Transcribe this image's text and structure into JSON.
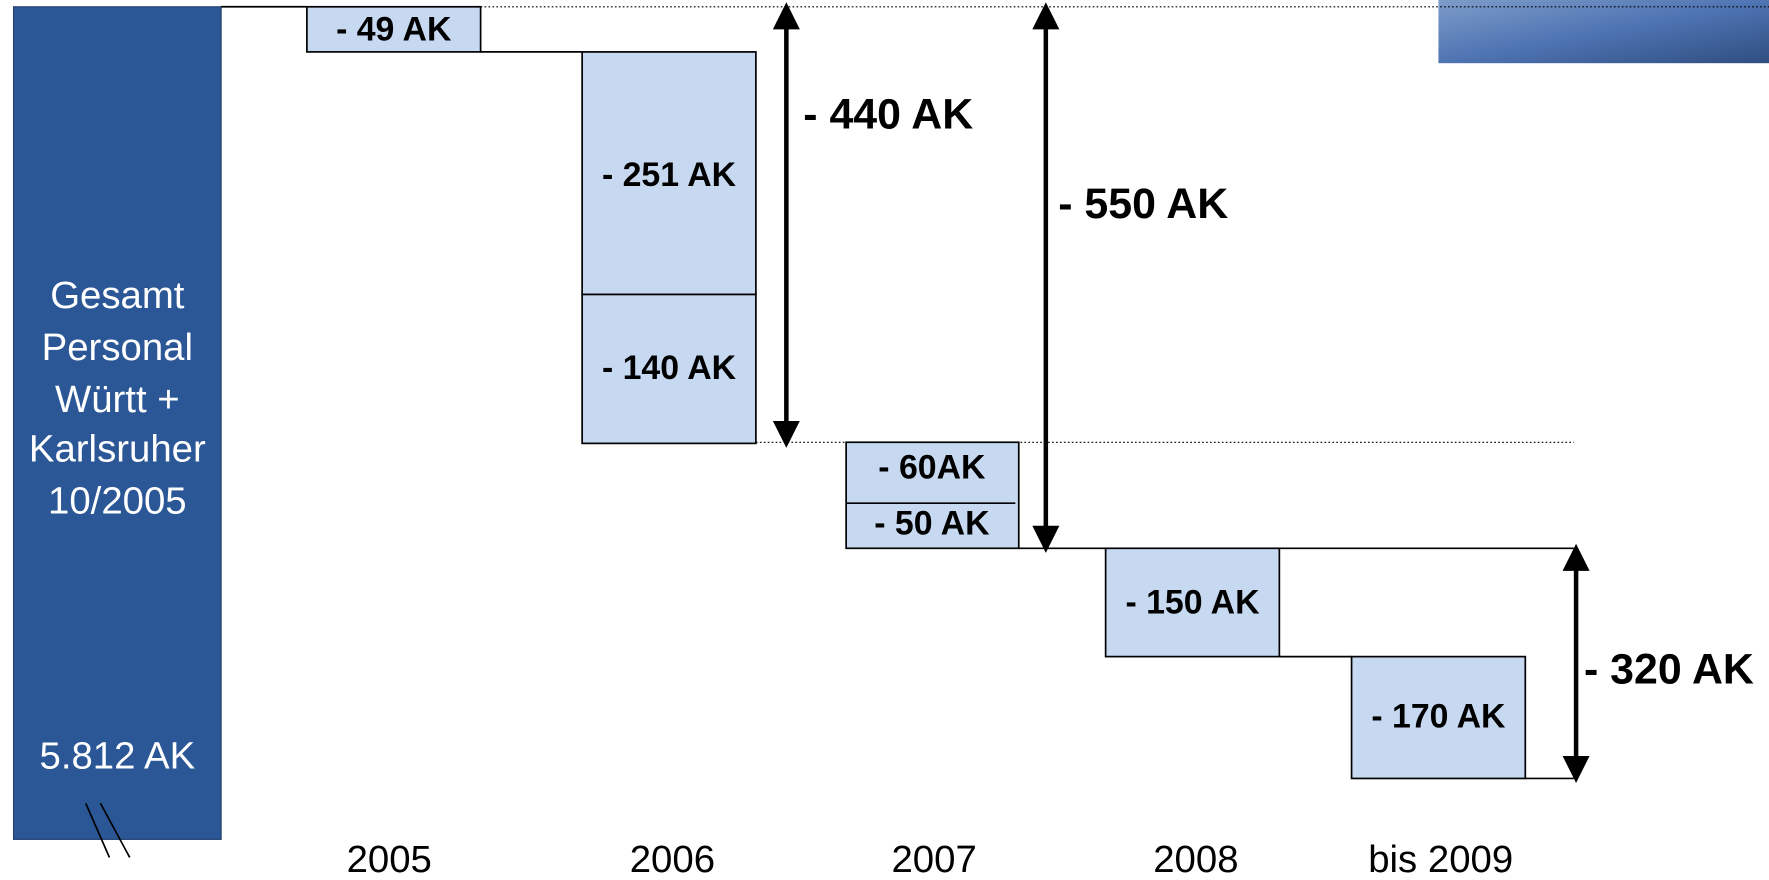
{
  "total_bar": {
    "lines": [
      "Gesamt",
      "Personal",
      "Württ +",
      "Karlsruher",
      "10/2005"
    ],
    "value": "5.812 AK"
  },
  "steps": [
    "- 49 AK",
    "- 251 AK",
    "- 140 AK",
    "- 60AK",
    "- 50 AK",
    "- 150 AK",
    "- 170 AK"
  ],
  "spans": [
    "- 440 AK",
    "- 550 AK",
    "- 320 AK"
  ],
  "years": [
    "2005",
    "2006",
    "2007",
    "2008",
    "bis 2009"
  ]
}
